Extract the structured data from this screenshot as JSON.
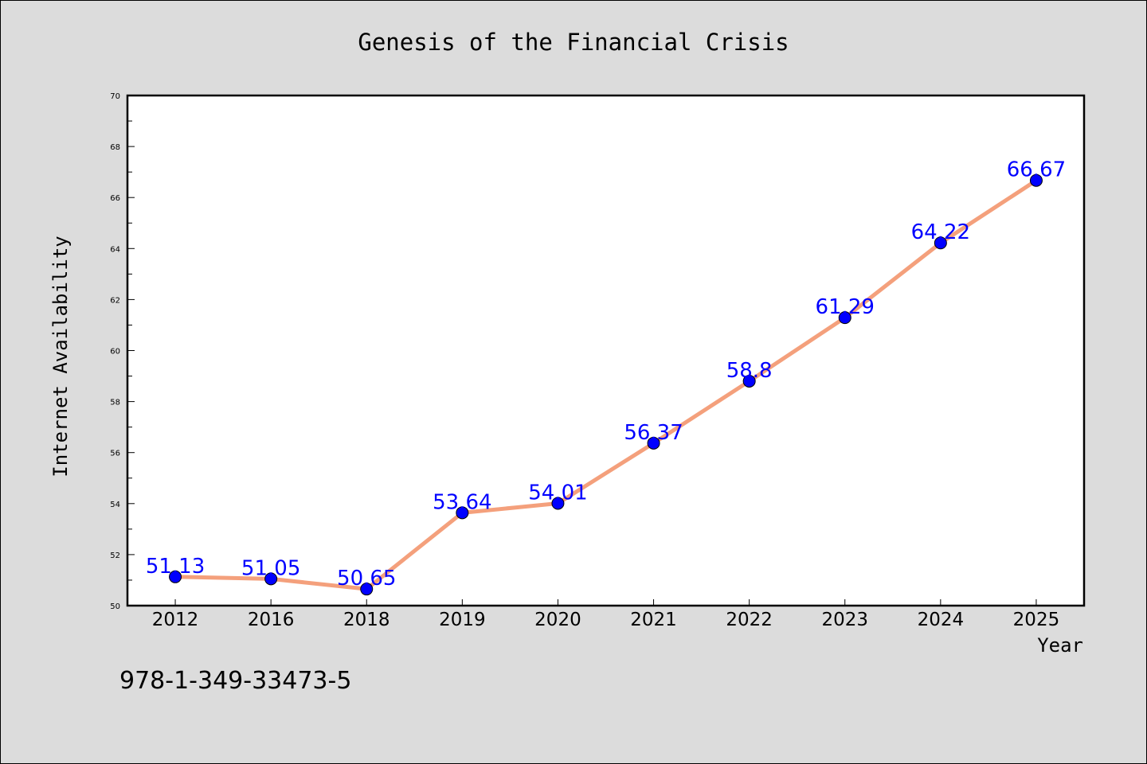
{
  "chart_data": {
    "type": "line",
    "title": "Genesis of the Financial Crisis",
    "xlabel": "Year",
    "ylabel": "Internet Availability",
    "categories": [
      "2012",
      "2016",
      "2018",
      "2019",
      "2020",
      "2021",
      "2022",
      "2023",
      "2024",
      "2025"
    ],
    "values": [
      51.13,
      51.05,
      50.65,
      53.64,
      54.01,
      56.37,
      58.8,
      61.29,
      64.22,
      66.67
    ],
    "data_labels": [
      "51.13",
      "51.05",
      "50.65",
      "53.64",
      "54.01",
      "56.37",
      "58.8",
      "61.29",
      "64.22",
      "66.67"
    ],
    "ylim": [
      50,
      70
    ],
    "yticks": [
      "50",
      "52",
      "54",
      "56",
      "58",
      "60",
      "62",
      "64",
      "66",
      "68",
      "70"
    ],
    "grid": false,
    "line_color": "#f4a07c",
    "marker_color": "#0000ff",
    "label_color": "#0000ff"
  },
  "footer": {
    "isbn": "978-1-349-33473-5"
  }
}
